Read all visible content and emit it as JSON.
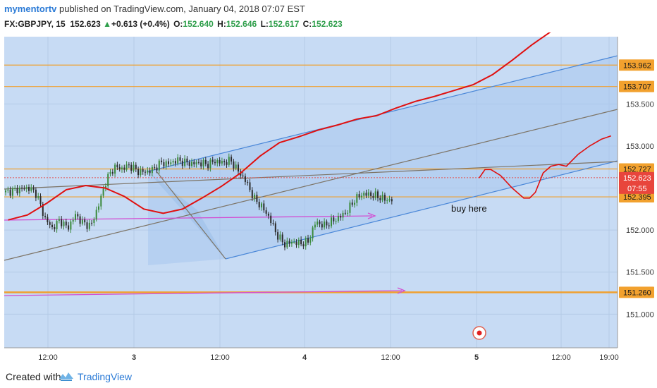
{
  "header": {
    "author": "mymentortv",
    "published": " published on TradingView.com, January 04, 2018 07:07 EST",
    "symbol": "FX:GBPJPY, 15",
    "last": "152.623",
    "change": "+0.613 (+0.4%)",
    "open_label": "O:",
    "open": "152.640",
    "high_label": "H:",
    "high": "152.646",
    "low_label": "L:",
    "low": "152.617",
    "close_label": "C:",
    "close": "152.623"
  },
  "footer": {
    "created_with": "Created with",
    "brand": "TradingView"
  },
  "colors": {
    "background": "#c7dbf4",
    "channel_fill": "#a8c7ef",
    "channel_line": "#4a87d8",
    "level_line": "#f0a030",
    "forecast_line": "#e01010",
    "arrow": "#d24ed2",
    "trendline": "#7d7466",
    "candle_up": "#3a8a3a",
    "candle_down": "#2b2b2b",
    "badge": "#f2a12e"
  },
  "chart_data": {
    "type": "line",
    "symbol": "FX:GBPJPY",
    "timeframe": "15",
    "x_tick_labels": [
      "12:00",
      "3",
      "12:00",
      "4",
      "12:00",
      "5",
      "12:00",
      "19:00"
    ],
    "y_tick_labels": [
      "153.500",
      "153.000",
      "152.500",
      "152.000",
      "151.500",
      "151.000"
    ],
    "ylim": [
      150.6,
      154.3
    ],
    "price_levels": [
      {
        "label": "153.962",
        "value": 153.962
      },
      {
        "label": "153.707",
        "value": 153.707
      },
      {
        "label": "152.727",
        "value": 152.727
      },
      {
        "label": "152.395",
        "value": 152.395
      },
      {
        "label": "151.260",
        "value": 151.26
      }
    ],
    "last_price": {
      "label": "152.623",
      "value": 152.623,
      "countdown": "07:55"
    },
    "annotations": [
      {
        "text": "buy here"
      }
    ],
    "price_series": {
      "x": [
        0,
        4,
        8,
        12,
        16,
        20,
        24,
        28,
        32,
        36,
        40,
        44,
        48,
        52,
        56,
        60,
        64,
        68,
        72,
        76,
        80,
        84,
        88,
        92,
        96,
        100,
        104,
        108,
        112,
        116,
        120,
        124,
        128,
        132,
        136,
        140,
        144,
        148,
        152,
        156,
        160,
        164,
        168,
        172,
        176,
        180,
        184,
        188,
        192,
        196,
        200,
        204,
        208,
        212,
        216,
        220,
        224,
        228,
        232,
        236,
        240
      ],
      "y": [
        152.45,
        152.47,
        152.49,
        152.5,
        152.43,
        152.15,
        152.02,
        152.12,
        152.02,
        152.18,
        152.08,
        152.05,
        152.3,
        152.6,
        152.75,
        152.73,
        152.77,
        152.7,
        152.69,
        152.72,
        152.8,
        152.79,
        152.83,
        152.81,
        152.79,
        152.8,
        152.78,
        152.82,
        152.8,
        152.83,
        152.7,
        152.58,
        152.38,
        152.28,
        152.15,
        151.94,
        151.83,
        151.86,
        151.84,
        151.86,
        152.1,
        152.05,
        152.1,
        152.15,
        152.22,
        152.36,
        152.43,
        152.42,
        152.4,
        152.36,
        152.36,
        152.27,
        152.24,
        152.32,
        152.48,
        152.6,
        152.57,
        152.61,
        152.64,
        152.62,
        152.62
      ]
    },
    "moving_average": {
      "x": [
        2,
        12,
        22,
        32,
        42,
        52,
        62,
        72,
        82,
        92,
        102,
        112,
        122,
        132,
        142,
        152,
        162,
        172,
        182,
        192,
        202,
        212,
        222,
        232,
        242,
        252,
        262,
        272,
        282,
        292,
        302
      ],
      "y": [
        152.12,
        152.18,
        152.32,
        152.48,
        152.53,
        152.5,
        152.4,
        152.25,
        152.2,
        152.25,
        152.38,
        152.52,
        152.68,
        152.88,
        153.04,
        153.11,
        153.19,
        153.25,
        153.32,
        153.36,
        153.45,
        153.53,
        153.59,
        153.66,
        153.73,
        153.85,
        154.02,
        154.2,
        154.36,
        154.48,
        154.62
      ]
    },
    "forecast": {
      "x": [
        245,
        248,
        251,
        256,
        262,
        268,
        271,
        274,
        278,
        282,
        286,
        290,
        296,
        302,
        308,
        313
      ],
      "y": [
        152.62,
        152.72,
        152.72,
        152.65,
        152.5,
        152.38,
        152.38,
        152.45,
        152.68,
        152.76,
        152.78,
        152.76,
        152.9,
        153.0,
        153.08,
        153.12
      ]
    }
  }
}
